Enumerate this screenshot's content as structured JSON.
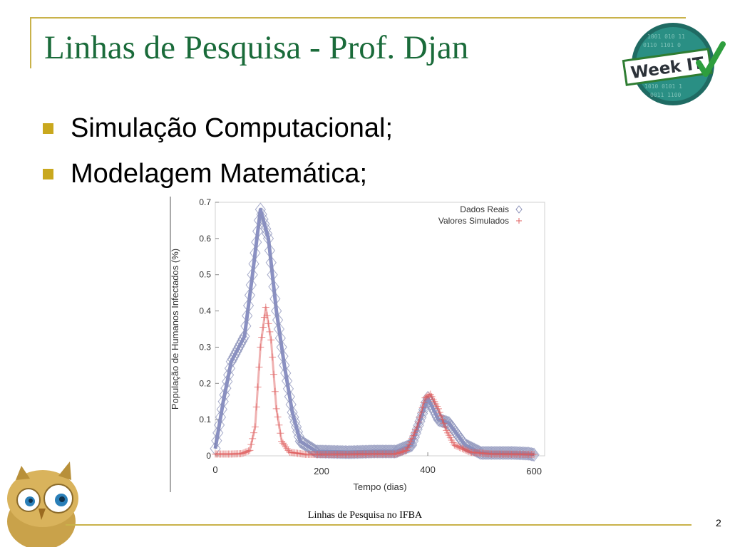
{
  "slide": {
    "title": "Linhas de Pesquisa - Prof. Djan",
    "bullets": [
      "Simulação Computacional;",
      "Modelagem Matemática;"
    ],
    "footer": "Linhas de Pesquisa no IFBA",
    "page_number": "2",
    "logo_text": "Week IT",
    "colors": {
      "title": "#1a6b3a",
      "accent": "#c9b24a",
      "bullet": "#c9a81e"
    }
  },
  "chart_data": {
    "type": "scatter",
    "title": "",
    "xlabel": "Tempo (dias)",
    "ylabel": "População de Humanos Infectados (%)",
    "xlim": [
      0,
      620
    ],
    "ylim": [
      0,
      0.7
    ],
    "x_ticks": [
      0,
      200,
      400,
      600
    ],
    "y_ticks": [
      0,
      0.1,
      0.2,
      0.3,
      0.4,
      0.5,
      0.6,
      0.7
    ],
    "x_tick_labels": [
      "0",
      "200",
      "400",
      "600"
    ],
    "y_tick_labels": [
      "0",
      "0.1",
      "0.2",
      "0.3",
      "0.4",
      "0.5",
      "0.6",
      "0.7"
    ],
    "legend_position": "top-right",
    "series": [
      {
        "name": "Dados Reais",
        "marker": "diamond",
        "color": "#8a90b8",
        "points": [
          [
            0,
            0.02
          ],
          [
            15,
            0.15
          ],
          [
            30,
            0.26
          ],
          [
            55,
            0.33
          ],
          [
            70,
            0.5
          ],
          [
            85,
            0.68
          ],
          [
            100,
            0.6
          ],
          [
            115,
            0.4
          ],
          [
            130,
            0.25
          ],
          [
            145,
            0.12
          ],
          [
            160,
            0.04
          ],
          [
            190,
            0.012
          ],
          [
            250,
            0.01
          ],
          [
            300,
            0.012
          ],
          [
            340,
            0.012
          ],
          [
            370,
            0.03
          ],
          [
            400,
            0.16
          ],
          [
            420,
            0.1
          ],
          [
            440,
            0.09
          ],
          [
            470,
            0.03
          ],
          [
            500,
            0.008
          ],
          [
            560,
            0.008
          ],
          [
            590,
            0.006
          ],
          [
            600,
            0.003
          ]
        ]
      },
      {
        "name": "Valores Simulados",
        "marker": "plus",
        "color": "#e06060",
        "points": [
          [
            0,
            0.005
          ],
          [
            30,
            0.005
          ],
          [
            50,
            0.006
          ],
          [
            65,
            0.015
          ],
          [
            75,
            0.08
          ],
          [
            85,
            0.3
          ],
          [
            95,
            0.41
          ],
          [
            105,
            0.32
          ],
          [
            115,
            0.13
          ],
          [
            125,
            0.04
          ],
          [
            140,
            0.01
          ],
          [
            170,
            0.004
          ],
          [
            250,
            0.004
          ],
          [
            300,
            0.005
          ],
          [
            340,
            0.005
          ],
          [
            360,
            0.015
          ],
          [
            380,
            0.08
          ],
          [
            395,
            0.16
          ],
          [
            405,
            0.17
          ],
          [
            420,
            0.13
          ],
          [
            435,
            0.07
          ],
          [
            450,
            0.03
          ],
          [
            480,
            0.01
          ],
          [
            520,
            0.005
          ],
          [
            600,
            0.004
          ]
        ]
      }
    ]
  }
}
